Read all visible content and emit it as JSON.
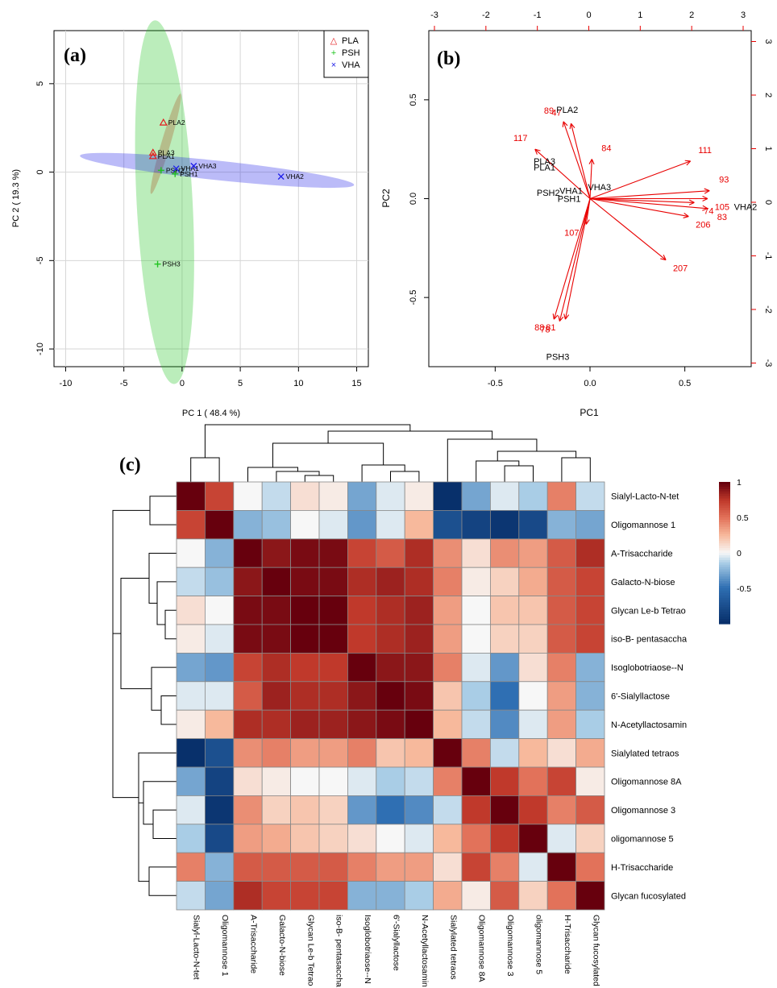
{
  "panel_labels": {
    "a": "(a)",
    "b": "(b)",
    "c": "(c)"
  },
  "colors": {
    "PLA": "#e41a1c",
    "PSH": "#1fc41f",
    "VHA": "#1f1fe8",
    "arrow": "#e80000",
    "grid": "#d6d6d6"
  },
  "chart_data": [
    {
      "panel": "(a)",
      "type": "scatter",
      "xlabel": "PC 1 ( 48.4 %)",
      "ylabel": "PC 2 ( 19.3 %)",
      "xlim": [
        -11,
        16
      ],
      "ylim": [
        -11,
        8
      ],
      "xticks": [
        -10,
        -5,
        0,
        5,
        10,
        15
      ],
      "yticks": [
        -10,
        -5,
        0,
        5
      ],
      "grid": true,
      "legend_position": "top-right",
      "series": [
        {
          "name": "PLA",
          "marker": "△",
          "color": "#e41a1c",
          "points": [
            {
              "label": "PLA2",
              "x": -1.6,
              "y": 2.8
            },
            {
              "label": "PLA3",
              "x": -2.5,
              "y": 1.1
            },
            {
              "label": "PLA1",
              "x": -2.5,
              "y": 0.9
            }
          ]
        },
        {
          "name": "PSH",
          "marker": "+",
          "color": "#1fc41f",
          "points": [
            {
              "label": "PSH2",
              "x": -1.8,
              "y": 0.1
            },
            {
              "label": "PSH1",
              "x": -0.6,
              "y": -0.1
            },
            {
              "label": "PSH3",
              "x": -2.1,
              "y": -5.2
            }
          ]
        },
        {
          "name": "VHA",
          "marker": "×",
          "color": "#1f1fe8",
          "points": [
            {
              "label": "VHA1",
              "x": -0.5,
              "y": 0.2
            },
            {
              "label": "VHA3",
              "x": 1.0,
              "y": 0.35
            },
            {
              "label": "VHA2",
              "x": 8.5,
              "y": -0.25
            }
          ]
        }
      ],
      "ellipses": [
        {
          "group": "PLA",
          "color": "#e41a1c",
          "cx": -1.4,
          "cy": 1.6,
          "rx": 3.1,
          "ry": 0.35,
          "angle_deg": 66
        },
        {
          "group": "PSH",
          "color": "#1fc41f",
          "cx": -1.5,
          "cy": -1.7,
          "rx": 2.4,
          "ry": 10.3,
          "angle_deg": 2
        },
        {
          "group": "VHA",
          "color": "#1f1fe8",
          "cx": 3.0,
          "cy": 0.1,
          "rx": 11.8,
          "ry": 0.55,
          "angle_deg": -4
        }
      ]
    },
    {
      "panel": "(b)",
      "type": "scatter",
      "xlabel": "PC1",
      "ylabel": "PC2",
      "xlim": [
        -0.85,
        0.85
      ],
      "ylim": [
        -0.85,
        0.85
      ],
      "xticks": [
        -0.5,
        0.0,
        0.5
      ],
      "yticks": [
        -0.5,
        0.0,
        0.5
      ],
      "top_xticks": [
        -3,
        -2,
        -1,
        0,
        1,
        2,
        3
      ],
      "right_yticks": [
        -3,
        -2,
        -1,
        0,
        1,
        2,
        3
      ],
      "scores": [
        {
          "label": "PLA2",
          "x": -0.12,
          "y": 0.45
        },
        {
          "label": "PLA3",
          "x": -0.24,
          "y": 0.19
        },
        {
          "label": "PLA1",
          "x": -0.24,
          "y": 0.16
        },
        {
          "label": "PSH2",
          "x": -0.22,
          "y": 0.03
        },
        {
          "label": "VHA1",
          "x": -0.1,
          "y": 0.04
        },
        {
          "label": "VHA3",
          "x": 0.05,
          "y": 0.06
        },
        {
          "label": "PSH1",
          "x": -0.11,
          "y": 0.0
        },
        {
          "label": "VHA2",
          "x": 0.82,
          "y": -0.04
        },
        {
          "label": "PSH3",
          "x": -0.17,
          "y": -0.8
        }
      ],
      "loadings": [
        {
          "label": "89",
          "x": -0.14,
          "y": 0.39
        },
        {
          "label": "47",
          "x": -0.1,
          "y": 0.38
        },
        {
          "label": "117",
          "x": -0.29,
          "y": 0.25
        },
        {
          "label": "84",
          "x": 0.01,
          "y": 0.2
        },
        {
          "label": "111",
          "x": 0.53,
          "y": 0.19
        },
        {
          "label": "93",
          "x": 0.63,
          "y": 0.04
        },
        {
          "label": "105",
          "x": 0.62,
          "y": 0.0
        },
        {
          "label": "74",
          "x": 0.55,
          "y": -0.02
        },
        {
          "label": "83",
          "x": 0.62,
          "y": -0.05
        },
        {
          "label": "206",
          "x": 0.52,
          "y": -0.09
        },
        {
          "label": "107",
          "x": -0.02,
          "y": -0.13
        },
        {
          "label": "207",
          "x": 0.4,
          "y": -0.31
        },
        {
          "label": "88",
          "x": -0.19,
          "y": -0.61
        },
        {
          "label": "78",
          "x": -0.16,
          "y": -0.62
        },
        {
          "label": "81",
          "x": -0.13,
          "y": -0.61
        }
      ]
    },
    {
      "panel": "(c)",
      "type": "heatmap",
      "rows": [
        "Sialyl-Lacto-N-tet",
        "Oligomannose 1",
        "A-Trisaccharide",
        "Galacto-N-biose",
        "Glycan Le-b Tetrao",
        "iso-B- pentasaccha",
        "Isoglobotriaose--N",
        "6'-Sialyllactose",
        "N-Acetyllactosamin",
        "Sialylated tetraos",
        "Oligomannose 8A",
        "Oligomannose 3",
        "oligomannose 5",
        "H-Trisaccharide",
        "Glycan fucosylated"
      ],
      "columns": [
        "Sialyl-Lacto-N-tet",
        "Oligomannose 1",
        "A-Trisaccharide",
        "Galacto-N-biose",
        "Glycan Le-b Tetrao",
        "iso-B- pentasaccha",
        "Isoglobotriaose--N",
        "6'-Sialyllactose",
        "N-Acetyllactosamin",
        "Sialylated tetraos",
        "Oligomannose 8A",
        "Oligomannose 3",
        "oligomannose 5",
        "H-Trisaccharide",
        "Glycan fucosylated"
      ],
      "values": [
        [
          1.0,
          0.7,
          0.0,
          -0.1,
          0.1,
          0.05,
          -0.3,
          -0.05,
          0.05,
          -1.0,
          -0.3,
          -0.05,
          -0.15,
          0.45,
          -0.1
        ],
        [
          0.7,
          1.0,
          -0.25,
          -0.2,
          0.0,
          -0.05,
          -0.35,
          -0.05,
          0.25,
          -0.75,
          -0.85,
          -0.95,
          -0.8,
          -0.25,
          -0.3
        ],
        [
          0.0,
          -0.25,
          1.0,
          0.9,
          0.95,
          0.95,
          0.7,
          0.6,
          0.8,
          0.4,
          0.1,
          0.4,
          0.35,
          0.6,
          0.8
        ],
        [
          -0.1,
          -0.2,
          0.9,
          1.0,
          0.95,
          0.95,
          0.8,
          0.85,
          0.8,
          0.45,
          0.05,
          0.15,
          0.3,
          0.6,
          0.7
        ],
        [
          0.1,
          0.0,
          0.95,
          0.95,
          1.0,
          1.0,
          0.75,
          0.8,
          0.85,
          0.35,
          0.0,
          0.2,
          0.2,
          0.6,
          0.7
        ],
        [
          0.05,
          -0.05,
          0.95,
          0.95,
          1.0,
          1.0,
          0.75,
          0.8,
          0.85,
          0.35,
          0.0,
          0.15,
          0.15,
          0.6,
          0.7
        ],
        [
          -0.3,
          -0.35,
          0.7,
          0.8,
          0.75,
          0.75,
          1.0,
          0.9,
          0.9,
          0.45,
          -0.05,
          -0.35,
          0.1,
          0.45,
          -0.25
        ],
        [
          -0.05,
          -0.05,
          0.6,
          0.85,
          0.8,
          0.8,
          0.9,
          1.0,
          0.95,
          0.2,
          -0.15,
          -0.5,
          0.0,
          0.35,
          -0.25
        ],
        [
          0.05,
          0.25,
          0.8,
          0.8,
          0.85,
          0.85,
          0.9,
          0.95,
          1.0,
          0.25,
          -0.1,
          -0.4,
          -0.05,
          0.35,
          -0.15
        ],
        [
          -1.0,
          -0.75,
          0.4,
          0.45,
          0.35,
          0.35,
          0.45,
          0.2,
          0.25,
          1.0,
          0.45,
          -0.1,
          0.25,
          0.1,
          0.3
        ],
        [
          -0.3,
          -0.85,
          0.1,
          0.05,
          0.0,
          0.0,
          -0.05,
          -0.15,
          -0.1,
          0.45,
          1.0,
          0.75,
          0.5,
          0.7,
          0.05
        ],
        [
          -0.05,
          -0.95,
          0.4,
          0.15,
          0.2,
          0.15,
          -0.35,
          -0.5,
          -0.4,
          -0.1,
          0.75,
          1.0,
          0.75,
          0.45,
          0.6
        ],
        [
          -0.15,
          -0.8,
          0.35,
          0.3,
          0.2,
          0.15,
          0.1,
          0.0,
          -0.05,
          0.25,
          0.5,
          0.75,
          1.0,
          -0.05,
          0.15
        ],
        [
          0.45,
          -0.25,
          0.6,
          0.6,
          0.6,
          0.6,
          0.45,
          0.35,
          0.35,
          0.1,
          0.7,
          0.45,
          -0.05,
          1.0,
          0.5
        ],
        [
          -0.1,
          -0.3,
          0.8,
          0.7,
          0.7,
          0.7,
          -0.25,
          -0.25,
          -0.15,
          0.3,
          0.05,
          0.6,
          0.15,
          0.5,
          1.0
        ]
      ],
      "color_scale": {
        "ticks": [
          1,
          0.5,
          0,
          -0.5
        ],
        "range": [
          -1,
          1
        ],
        "low": "#08306b",
        "mid": "#f7f7f7",
        "high": "#67000d"
      }
    }
  ]
}
